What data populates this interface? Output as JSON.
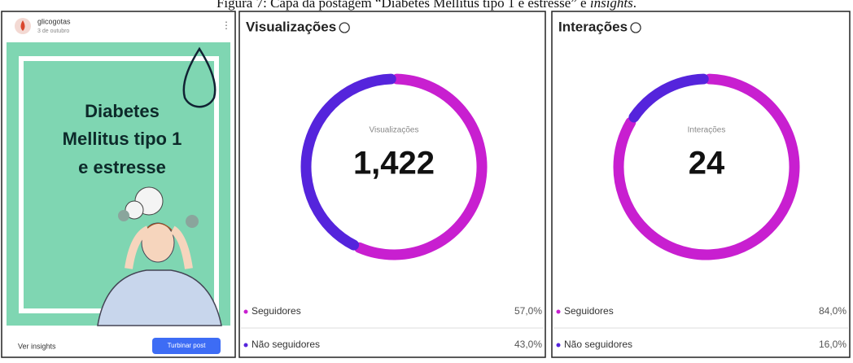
{
  "caption": {
    "text": "Figura 7: Capa da postagem “Diabetes Mellitus tipo 1 e estresse” e ",
    "italic": "insights",
    "end": "."
  },
  "post": {
    "account": "glicogotas",
    "date": "3 de outubro",
    "title_lines": [
      "Diabetes",
      "Mellitus tipo 1",
      "e estresse"
    ],
    "insights_link": "Ver insights",
    "boost_button": "Turbinar post"
  },
  "panels": [
    {
      "title": "Visualizações",
      "center_label": "Visualizações",
      "total": "1,422",
      "segments": [
        {
          "name": "Seguidores",
          "value": 57.0,
          "label": "57,0%",
          "color": "#c81fd0"
        },
        {
          "name": "Não seguidores",
          "value": 43.0,
          "label": "43,0%",
          "color": "#5524dc"
        }
      ]
    },
    {
      "title": "Interações",
      "center_label": "Interações",
      "total": "24",
      "segments": [
        {
          "name": "Seguidores",
          "value": 84.0,
          "label": "84,0%",
          "color": "#c81fd0"
        },
        {
          "name": "Não seguidores",
          "value": 16.0,
          "label": "16,0%",
          "color": "#5524dc"
        }
      ]
    }
  ]
}
